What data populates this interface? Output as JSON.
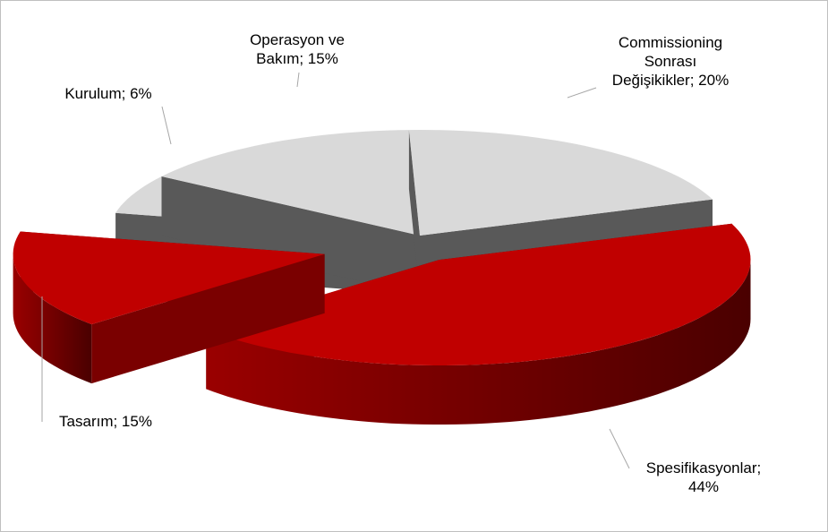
{
  "chart_data": {
    "type": "pie3d",
    "values": [
      44,
      15,
      6,
      15,
      20
    ],
    "value_labels": [
      "Spesifikasyonlar;\n44%",
      "Tasarım; 15%",
      "Kurulum;  6%",
      "Operasyon ve\nBakım; 15%",
      "Commissioning\nSonrası\nDeğişikikler; 20%"
    ],
    "colors": [
      "#c00000",
      "#c00000",
      "#d9d9d9",
      "#d9d9d9",
      "#d9d9d9"
    ]
  }
}
